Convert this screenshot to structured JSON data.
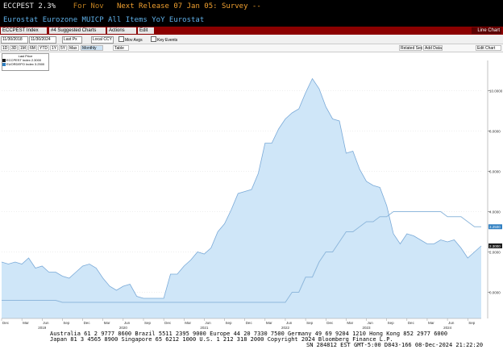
{
  "header": {
    "ticker": "ECCPEST",
    "value": "2.3%",
    "for_label": "For Nov",
    "next_release": "Next Release 07 Jan 05: Survey --",
    "subtitle": "Eurostat Eurozone MUICP All Items YoY Eurostat"
  },
  "toolbar": {
    "index_label": "ECCPEST Index",
    "suggested_charts": "#4 Suggested Charts",
    "actions": "Actions",
    "edit": "Edit",
    "line_chart": "Line Chart"
  },
  "range_bar": {
    "start_date": "11/30/2018",
    "end_date": "11/30/2024",
    "last_px": "Last Px",
    "currency": "Local CCY",
    "mov_avgs": "Mov Avgs",
    "key_events": "Key Events"
  },
  "period_bar": {
    "buttons": [
      "1D",
      "3D",
      "1M",
      "6M",
      "YTD",
      "1Y",
      "5Y",
      "Max"
    ],
    "frequency": "Monthly",
    "table": "Table",
    "related_sec": "Related Sec",
    "add_data": "Add Data",
    "edit_chart": "Edit Chart"
  },
  "legend": {
    "title": "Last Price",
    "items": [
      {
        "label": "ECCPEST Index",
        "value": "2.3000",
        "color": "#1a1a1a"
      },
      {
        "label": "EUORDEPO Index",
        "value": "3.2500",
        "color": "#2f7fc1"
      }
    ]
  },
  "chart_data": {
    "type": "area",
    "x": [
      "2018-12",
      "2019-01",
      "2019-02",
      "2019-03",
      "2019-04",
      "2019-05",
      "2019-06",
      "2019-07",
      "2019-08",
      "2019-09",
      "2019-10",
      "2019-11",
      "2019-12",
      "2020-01",
      "2020-02",
      "2020-03",
      "2020-04",
      "2020-05",
      "2020-06",
      "2020-07",
      "2020-08",
      "2020-09",
      "2020-10",
      "2020-11",
      "2020-12",
      "2021-01",
      "2021-02",
      "2021-03",
      "2021-04",
      "2021-05",
      "2021-06",
      "2021-07",
      "2021-08",
      "2021-09",
      "2021-10",
      "2021-11",
      "2021-12",
      "2022-01",
      "2022-02",
      "2022-03",
      "2022-04",
      "2022-05",
      "2022-06",
      "2022-07",
      "2022-08",
      "2022-09",
      "2022-10",
      "2022-11",
      "2022-12",
      "2023-01",
      "2023-02",
      "2023-03",
      "2023-04",
      "2023-05",
      "2023-06",
      "2023-07",
      "2023-08",
      "2023-09",
      "2023-10",
      "2023-11",
      "2023-12",
      "2024-01",
      "2024-02",
      "2024-03",
      "2024-04",
      "2024-05",
      "2024-06",
      "2024-07",
      "2024-08",
      "2024-09",
      "2024-10",
      "2024-11"
    ],
    "series": [
      {
        "name": "ECCPEST Index",
        "values": [
          1.5,
          1.4,
          1.5,
          1.4,
          1.7,
          1.2,
          1.3,
          1.0,
          1.0,
          0.8,
          0.7,
          1.0,
          1.3,
          1.4,
          1.2,
          0.7,
          0.3,
          0.1,
          0.3,
          0.4,
          -0.2,
          -0.3,
          -0.3,
          -0.3,
          -0.3,
          0.9,
          0.9,
          1.3,
          1.6,
          2.0,
          1.9,
          2.2,
          3.0,
          3.4,
          4.1,
          4.9,
          5.0,
          5.1,
          5.9,
          7.4,
          7.4,
          8.1,
          8.6,
          8.9,
          9.1,
          9.9,
          10.6,
          10.1,
          9.2,
          8.6,
          8.5,
          6.9,
          7.0,
          6.1,
          5.5,
          5.3,
          5.2,
          4.3,
          2.9,
          2.4,
          2.9,
          2.8,
          2.6,
          2.4,
          2.4,
          2.6,
          2.5,
          2.6,
          2.2,
          1.7,
          2.0,
          2.3
        ]
      },
      {
        "name": "EUORDEPO Index",
        "values": [
          -0.4,
          -0.4,
          -0.4,
          -0.4,
          -0.4,
          -0.4,
          -0.4,
          -0.4,
          -0.4,
          -0.5,
          -0.5,
          -0.5,
          -0.5,
          -0.5,
          -0.5,
          -0.5,
          -0.5,
          -0.5,
          -0.5,
          -0.5,
          -0.5,
          -0.5,
          -0.5,
          -0.5,
          -0.5,
          -0.5,
          -0.5,
          -0.5,
          -0.5,
          -0.5,
          -0.5,
          -0.5,
          -0.5,
          -0.5,
          -0.5,
          -0.5,
          -0.5,
          -0.5,
          -0.5,
          -0.5,
          -0.5,
          -0.5,
          -0.5,
          0.0,
          0.0,
          0.75,
          0.75,
          1.5,
          2.0,
          2.0,
          2.5,
          3.0,
          3.0,
          3.25,
          3.5,
          3.5,
          3.75,
          3.75,
          4.0,
          4.0,
          4.0,
          4.0,
          4.0,
          4.0,
          4.0,
          4.0,
          3.75,
          3.75,
          3.75,
          3.5,
          3.25,
          3.25
        ]
      }
    ],
    "y_ticks": [
      "0.0000",
      "2.0000",
      "4.0000",
      "6.0000",
      "8.0000",
      "10.0000"
    ],
    "ylim": [
      -1.3,
      11.5
    ],
    "price_tags": [
      {
        "text": "3.2500",
        "value": 3.25,
        "color": "#2f7fc1"
      },
      {
        "text": "2.3000",
        "value": 2.3,
        "color": "#1a1a1a"
      }
    ],
    "x_month_labels": [
      "Dec",
      "Mar",
      "Jun",
      "Sep",
      "Dec",
      "Mar",
      "Jun",
      "Sep",
      "Dec",
      "Mar",
      "Jun",
      "Sep",
      "Dec",
      "Mar",
      "Jun",
      "Sep",
      "Dec",
      "Mar",
      "Jun",
      "Sep",
      "Dec",
      "Mar",
      "Jun",
      "Sep"
    ],
    "x_year_labels": [
      "2019",
      "2020",
      "2021",
      "2022",
      "2023",
      "2024"
    ],
    "fill_color": "#cfe6f8",
    "area_line_color": "#7aaad8",
    "grid": true
  },
  "footer": {
    "line1": "Australia 61 2 9777 8600  Brazil 5511 2395 9000  Europe 44 20 7330 7500  Germany 49 69 9204 1210  Hong Kong 852 2977 6000",
    "line2": "Japan 81 3 4565 8900        Singapore 65 6212 1000       U.S. 1 212 318 2000          Copyright 2024 Bloomberg Finance L.P.",
    "line3": "SN 284812 EST  GMT-5:00 D843-166 08-Dec-2024 21:22:20"
  }
}
